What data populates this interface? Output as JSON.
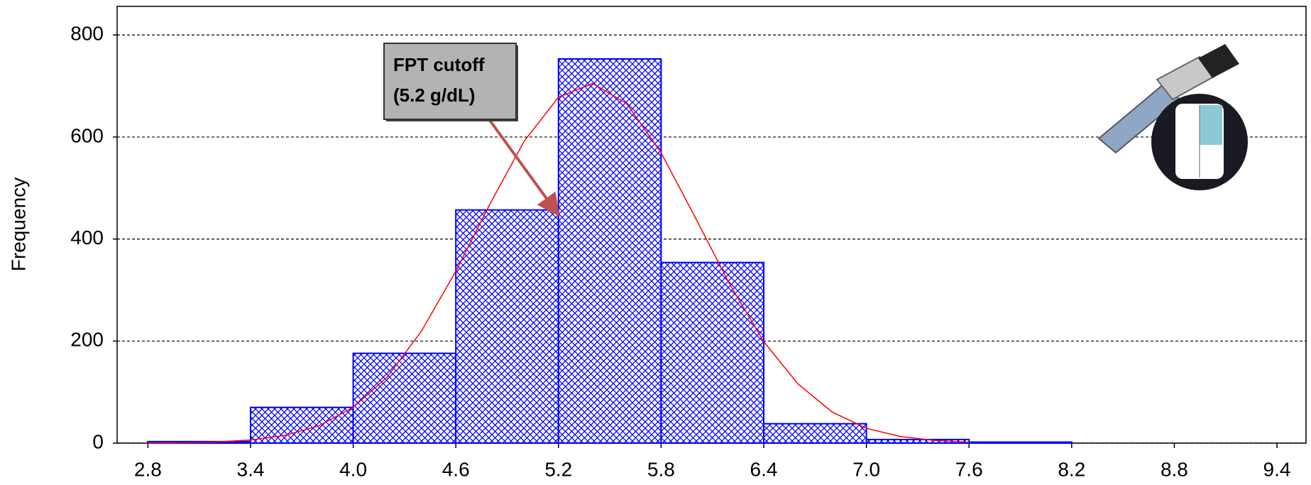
{
  "chart_data": {
    "type": "histogram",
    "y_label": "Frequency",
    "bins": [
      2.8,
      3.4,
      4.0,
      4.6,
      5.2,
      5.8,
      6.4,
      7.0,
      7.6,
      8.2
    ],
    "values": [
      3,
      70,
      176,
      457,
      753,
      354,
      38,
      7,
      2
    ],
    "color": "#0000ff",
    "xlim": [
      2.62,
      9.57
    ],
    "xticks": [
      2.8,
      3.4,
      {
        "value": 4,
        "label": "4.0"
      },
      4.6,
      5.2,
      5.8,
      6.4,
      {
        "value": 7,
        "label": "7.0"
      },
      7.6,
      8.2,
      8.8,
      9.4
    ],
    "ylim": [
      0,
      856
    ],
    "yticks": [
      0,
      200,
      400,
      600,
      800
    ],
    "grid": true,
    "curve": {
      "color": "#ff0000",
      "x": [
        2.8,
        3.0,
        3.2,
        3.4,
        3.6,
        3.8,
        4.0,
        4.2,
        4.4,
        4.6,
        4.8,
        5.0,
        5.2,
        5.4,
        5.6,
        5.8,
        6.0,
        6.2,
        6.4,
        6.6,
        6.8,
        7.0,
        7.2,
        7.4,
        7.6
      ],
      "y": [
        0.2,
        0.7,
        2.2,
        6.1,
        15,
        34,
        70,
        130,
        220,
        337,
        469,
        592,
        678,
        705,
        665,
        569,
        442,
        312,
        199,
        116,
        61,
        29,
        13,
        5,
        1.8
      ]
    },
    "annotation": {
      "lines": [
        "FPT cutoff",
        "(5.2 g/dL)"
      ]
    }
  }
}
